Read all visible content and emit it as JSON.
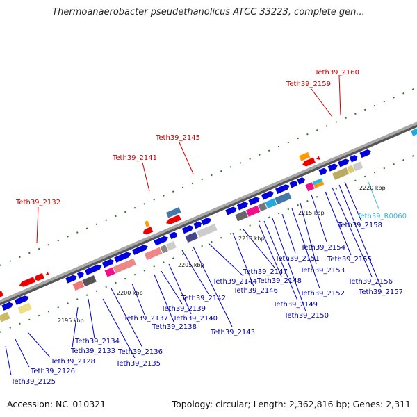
{
  "title": "Thermoanaerobacter pseudethanolicus ATCC 33223, complete gen...",
  "footer": {
    "accession": "Accession: NC_010321",
    "summary": "Topology: circular; Length: 2,362,816 bp; Genes: 2,311"
  },
  "ticks": [
    "2195 kbp",
    "2200 kbp",
    "2205 kbp",
    "2210 kbp",
    "2215 kbp",
    "2220 kbp"
  ],
  "labels_top": [
    "Teth39_2132",
    "Teth39_2141",
    "Teth39_2145",
    "Teth39_2159",
    "Teth39_2160"
  ],
  "labels_bottom": [
    "Teth39_2125",
    "Teth39_2126",
    "Teth39_2128",
    "Teth39_2133",
    "Teth39_2134",
    "Teth39_2135",
    "Teth39_2136",
    "Teth39_2137",
    "Teth39_2138",
    "Teth39_2139",
    "Teth39_2140",
    "Teth39_2142",
    "Teth39_2143",
    "Teth39_2144",
    "Teth39_2146",
    "Teth39_2147",
    "Teth39_2148",
    "Teth39_2149",
    "Teth39_2150",
    "Teth39_2151",
    "Teth39_2152",
    "Teth39_2153",
    "Teth39_2154",
    "Teth39_2155",
    "Teth39_2156",
    "Teth39_2157",
    "Teth39_2158",
    "Teth39_R0060"
  ],
  "colors": {
    "forward_cds": "#0000dd",
    "reverse_cds": "#ff0000",
    "top_label": "#cc0000",
    "bottom_label": "#0000aa",
    "rna_label": "#33bbdd",
    "backbone": "#808080",
    "grid_dots": "#2a7a2a"
  }
}
